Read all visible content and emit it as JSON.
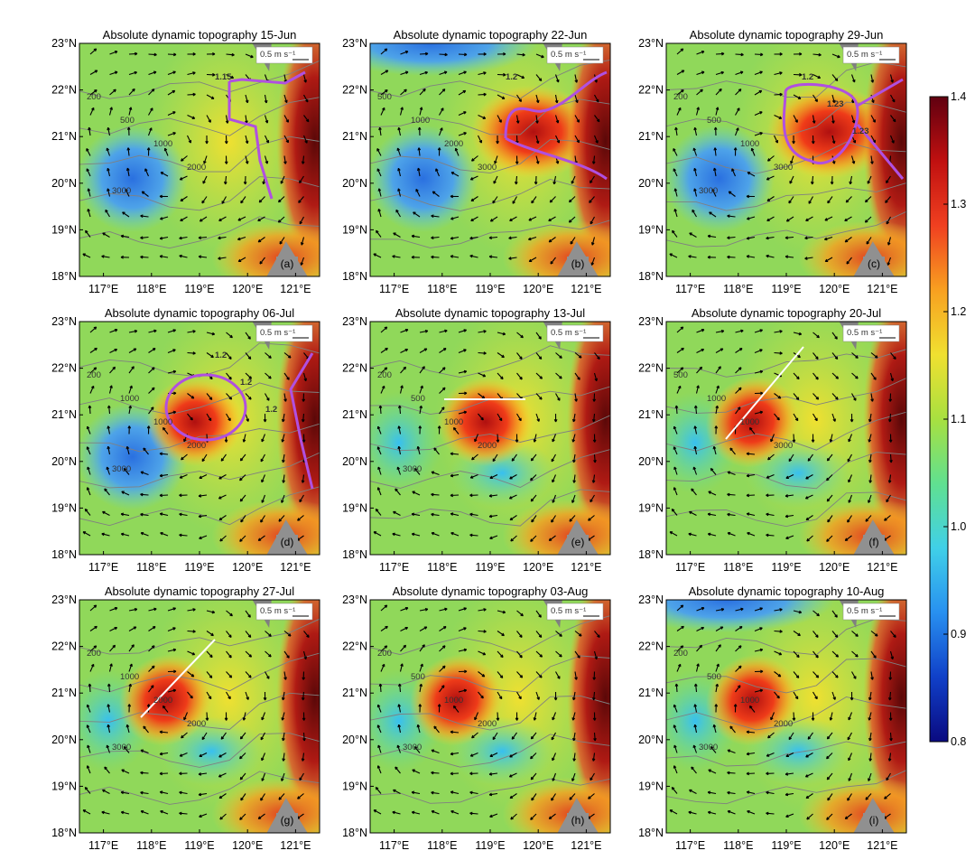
{
  "figure": {
    "panels": [
      {
        "id": "a",
        "title": "Absolute dynamic topography 15-Jun",
        "label": "(a)",
        "scale": "0.5 m s⁻¹",
        "eddy": false,
        "contours": [
          "1.15"
        ],
        "isobaths": [
          "200",
          "500",
          "1000",
          "2000",
          "3000"
        ],
        "colors": {
          "base": "#8fd45a",
          "cold": "#3a8ce8",
          "cold2": "#5aa8f0",
          "warm1": "#e05020",
          "warm2": "#a01010",
          "east": "#7a0a0a",
          "mid": "#f0e040"
        }
      },
      {
        "id": "b",
        "title": "Absolute dynamic topography 22-Jun",
        "label": "(b)",
        "scale": "0.5 m s⁻¹",
        "eddy": false,
        "contours": [
          "1.2"
        ],
        "isobaths": [
          "500",
          "1000",
          "2000",
          "3000"
        ]
      },
      {
        "id": "c",
        "title": "Absolute dynamic topography 29-Jun",
        "label": "(c)",
        "scale": "0.5 m s⁻¹",
        "eddy": false,
        "contours": [
          "1.2",
          "1.23",
          "1.23"
        ],
        "isobaths": [
          "200",
          "500",
          "1000",
          "3000",
          "3000"
        ]
      },
      {
        "id": "d",
        "title": "Absolute dynamic topography 06-Jul",
        "label": "(d)",
        "scale": "0.5 m s⁻¹",
        "eddy": true,
        "contours": [
          "1.2",
          "1.2",
          "1.2"
        ],
        "isobaths": [
          "200",
          "1000",
          "1000",
          "2000",
          "3000"
        ]
      },
      {
        "id": "e",
        "title": "Absolute dynamic topography 13-Jul",
        "label": "(e)",
        "scale": "0.5 m s⁻¹",
        "eddy": true,
        "contours": [],
        "isobaths": [
          "200",
          "500",
          "1000",
          "2000",
          "3000"
        ]
      },
      {
        "id": "f",
        "title": "Absolute dynamic topography 20-Jul",
        "label": "(f)",
        "scale": "0.5 m s⁻¹",
        "eddy": true,
        "contours": [],
        "isobaths": [
          "500",
          "1000",
          "1000",
          "3000"
        ]
      },
      {
        "id": "g",
        "title": "Absolute dynamic topography 27-Jul",
        "label": "(g)",
        "scale": "0.5 m s⁻¹",
        "eddy": true,
        "contours": [],
        "isobaths": [
          "200",
          "1000",
          "2000",
          "2000",
          "3000"
        ]
      },
      {
        "id": "h",
        "title": "Absolute dynamic topography 03-Aug",
        "label": "(h)",
        "scale": "0.5 m s⁻¹",
        "eddy": true,
        "contours": [],
        "isobaths": [
          "200",
          "500",
          "1000",
          "2000",
          "3000"
        ]
      },
      {
        "id": "i",
        "title": "Absolute dynamic topography 10-Aug",
        "label": "(i)",
        "scale": "0.5 m s⁻¹",
        "eddy": true,
        "contours": [],
        "isobaths": [
          "200",
          "500",
          "1000",
          "2000",
          "3000"
        ]
      }
    ],
    "lat_ticks": [
      "18°N",
      "19°N",
      "20°N",
      "21°N",
      "22°N",
      "23°N"
    ],
    "lon_ticks": [
      "117°E",
      "118°E",
      "119°E",
      "120°E",
      "121°E"
    ],
    "colorbar": {
      "ticks": [
        "0.8",
        "0.9",
        "1.0",
        "1.1",
        "1.2",
        "1.3",
        "1.4"
      ],
      "min": 0.8,
      "max": 1.4,
      "stops": [
        "#0a0a80",
        "#1040c8",
        "#2890f0",
        "#40d0e8",
        "#60e090",
        "#a8e040",
        "#f0e030",
        "#f8a020",
        "#f04020",
        "#c01010",
        "#600010"
      ]
    }
  }
}
